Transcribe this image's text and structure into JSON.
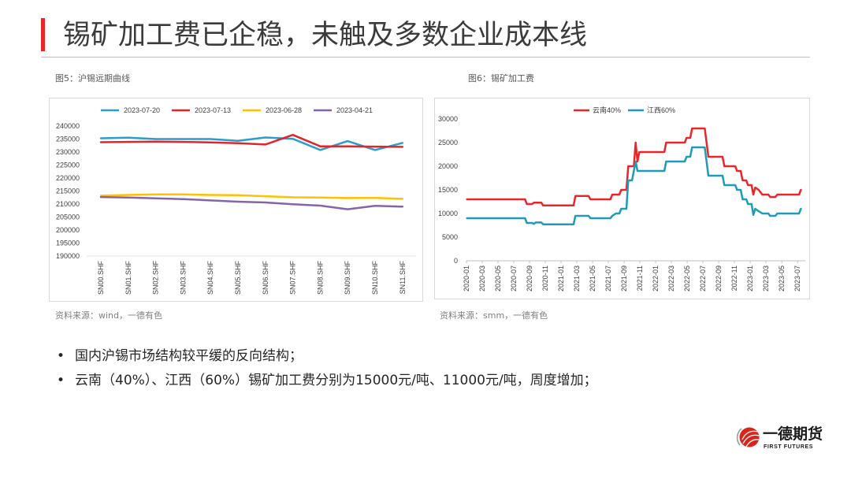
{
  "slide": {
    "title": "锡矿加工费已企稳，未触及多数企业成本线",
    "accent_color": "#e8262a",
    "divider_color": "#bfbfbf"
  },
  "bullets": {
    "marker": "•",
    "items": [
      "国内沪锡市场结构较平缓的反向结构；",
      "云南（40%）、江西（60%）锡矿加工费分别为15000元/吨、11000元/吨，周度增加；"
    ]
  },
  "logo": {
    "icon": "first-futures-logo-icon",
    "name": "一德期货",
    "subtitle": "FIRST FUTURES",
    "color": "#d9261c"
  },
  "chart_data": [
    {
      "type": "line",
      "caption": "图5：沪锡远期曲线",
      "source": "资料来源：wind，一德有色",
      "categories": [
        "SN00.SHF",
        "SN01.SHF",
        "SN02.SHF",
        "SN03.SHF",
        "SN04.SHF",
        "SN05.SHF",
        "SN06.SHF",
        "SN07.SHF",
        "SN08.SHF",
        "SN09.SHF",
        "SN10.SHF",
        "SN11.SHF"
      ],
      "series": [
        {
          "name": "2023-07-20",
          "color": "#2b9ccb",
          "values": [
            235300,
            235500,
            235000,
            235000,
            235000,
            234300,
            235600,
            235100,
            230800,
            234200,
            230800,
            233500
          ]
        },
        {
          "name": "2023-07-13",
          "color": "#e0262b",
          "values": [
            233800,
            233900,
            234000,
            233900,
            233700,
            233400,
            232900,
            236600,
            232200,
            232200,
            232100,
            232000
          ]
        },
        {
          "name": "2023-06-28",
          "color": "#ffc000",
          "values": [
            213200,
            213500,
            213700,
            213700,
            213500,
            213400,
            213000,
            212600,
            212500,
            212300,
            212400,
            212000
          ]
        },
        {
          "name": "2023-04-21",
          "color": "#8565a8",
          "values": [
            212700,
            212500,
            212200,
            211900,
            211400,
            210900,
            210600,
            209900,
            209400,
            208000,
            209300,
            209000
          ]
        }
      ],
      "ylim": [
        190000,
        240000
      ],
      "yticks": [
        240000,
        235000,
        230000,
        225000,
        220000,
        215000,
        210000,
        205000,
        200000,
        195000,
        190000
      ],
      "legend": "top-center",
      "grid": false
    },
    {
      "type": "line",
      "caption": "图6：锡矿加工费",
      "source": "资料来源：smm，一德有色",
      "xlim": [
        "2020-01-01",
        "2023-07-31"
      ],
      "xticks": [
        "2020-01",
        "2020-03",
        "2020-05",
        "2020-07",
        "2020-09",
        "2020-11",
        "2021-01",
        "2021-03",
        "2021-05",
        "2021-07",
        "2021-09",
        "2021-11",
        "2022-01",
        "2022-03",
        "2022-05",
        "2022-07",
        "2022-09",
        "2022-11",
        "2023-01",
        "2023-03",
        "2023-05",
        "2023-07"
      ],
      "series": [
        {
          "name": "云南40%",
          "color": "#e8262a",
          "points": [
            [
              "2020-01-03",
              13000
            ],
            [
              "2020-08-14",
              13000
            ],
            [
              "2020-08-21",
              12000
            ],
            [
              "2020-09-11",
              12000
            ],
            [
              "2020-09-18",
              12300
            ],
            [
              "2020-10-16",
              12300
            ],
            [
              "2020-10-23",
              11700
            ],
            [
              "2021-02-19",
              11700
            ],
            [
              "2021-02-26",
              13700
            ],
            [
              "2021-04-16",
              13700
            ],
            [
              "2021-04-23",
              13000
            ],
            [
              "2021-07-09",
              13000
            ],
            [
              "2021-07-16",
              14000
            ],
            [
              "2021-08-13",
              14000
            ],
            [
              "2021-08-20",
              15000
            ],
            [
              "2021-09-10",
              15000
            ],
            [
              "2021-09-17",
              20000
            ],
            [
              "2021-10-08",
              20000
            ],
            [
              "2021-10-15",
              25000
            ],
            [
              "2021-10-22",
              21000
            ],
            [
              "2021-10-29",
              23000
            ],
            [
              "2022-02-04",
              23000
            ],
            [
              "2022-02-11",
              25000
            ],
            [
              "2022-04-22",
              25000
            ],
            [
              "2022-04-29",
              26000
            ],
            [
              "2022-05-13",
              26000
            ],
            [
              "2022-05-20",
              28000
            ],
            [
              "2022-07-08",
              28000
            ],
            [
              "2022-07-15",
              25000
            ],
            [
              "2022-07-22",
              22000
            ],
            [
              "2022-09-16",
              22000
            ],
            [
              "2022-09-23",
              20000
            ],
            [
              "2022-11-04",
              20000
            ],
            [
              "2022-11-11",
              19000
            ],
            [
              "2022-11-25",
              19000
            ],
            [
              "2022-12-02",
              17000
            ],
            [
              "2022-12-16",
              17000
            ],
            [
              "2022-12-23",
              16000
            ],
            [
              "2023-01-06",
              16000
            ],
            [
              "2023-01-13",
              14000
            ],
            [
              "2023-01-20",
              15500
            ],
            [
              "2023-02-03",
              15000
            ],
            [
              "2023-02-17",
              14000
            ],
            [
              "2023-03-10",
              14000
            ],
            [
              "2023-03-17",
              13500
            ],
            [
              "2023-04-07",
              13500
            ],
            [
              "2023-04-14",
              14000
            ],
            [
              "2023-07-07",
              14000
            ],
            [
              "2023-07-14",
              15000
            ]
          ]
        },
        {
          "name": "江西60%",
          "color": "#1f9bb8",
          "points": [
            [
              "2020-01-03",
              9000
            ],
            [
              "2020-08-14",
              9000
            ],
            [
              "2020-08-21",
              8000
            ],
            [
              "2020-09-11",
              8000
            ],
            [
              "2020-09-18",
              7800
            ],
            [
              "2020-09-25",
              8100
            ],
            [
              "2020-10-16",
              8100
            ],
            [
              "2020-10-23",
              7700
            ],
            [
              "2021-02-19",
              7700
            ],
            [
              "2021-02-26",
              9500
            ],
            [
              "2021-04-16",
              9500
            ],
            [
              "2021-04-23",
              9000
            ],
            [
              "2021-07-09",
              9000
            ],
            [
              "2021-07-16",
              9500
            ],
            [
              "2021-07-30",
              10000
            ],
            [
              "2021-08-13",
              10000
            ],
            [
              "2021-08-20",
              11000
            ],
            [
              "2021-09-10",
              11000
            ],
            [
              "2021-09-17",
              17000
            ],
            [
              "2021-10-01",
              17000
            ],
            [
              "2021-10-08",
              19000
            ],
            [
              "2021-10-15",
              21000
            ],
            [
              "2021-10-22",
              19000
            ],
            [
              "2022-02-04",
              19000
            ],
            [
              "2022-02-11",
              21000
            ],
            [
              "2022-04-22",
              21000
            ],
            [
              "2022-04-29",
              22000
            ],
            [
              "2022-05-13",
              22000
            ],
            [
              "2022-05-20",
              24000
            ],
            [
              "2022-07-08",
              24000
            ],
            [
              "2022-07-15",
              21000
            ],
            [
              "2022-07-22",
              18000
            ],
            [
              "2022-09-16",
              18000
            ],
            [
              "2022-09-23",
              16000
            ],
            [
              "2022-11-04",
              16000
            ],
            [
              "2022-11-11",
              15000
            ],
            [
              "2022-11-25",
              15000
            ],
            [
              "2022-12-02",
              13000
            ],
            [
              "2022-12-16",
              13000
            ],
            [
              "2022-12-23",
              12000
            ],
            [
              "2023-01-06",
              12000
            ],
            [
              "2023-01-13",
              9700
            ],
            [
              "2023-01-20",
              11000
            ],
            [
              "2023-02-03",
              10500
            ],
            [
              "2023-02-17",
              10000
            ],
            [
              "2023-03-10",
              10000
            ],
            [
              "2023-03-17",
              9500
            ],
            [
              "2023-04-07",
              9500
            ],
            [
              "2023-04-14",
              10000
            ],
            [
              "2023-07-07",
              10000
            ],
            [
              "2023-07-14",
              11000
            ]
          ]
        }
      ],
      "ylim": [
        0,
        30000
      ],
      "yticks": [
        30000,
        25000,
        20000,
        15000,
        10000,
        5000,
        0
      ],
      "legend": "top-center",
      "grid": false
    }
  ]
}
